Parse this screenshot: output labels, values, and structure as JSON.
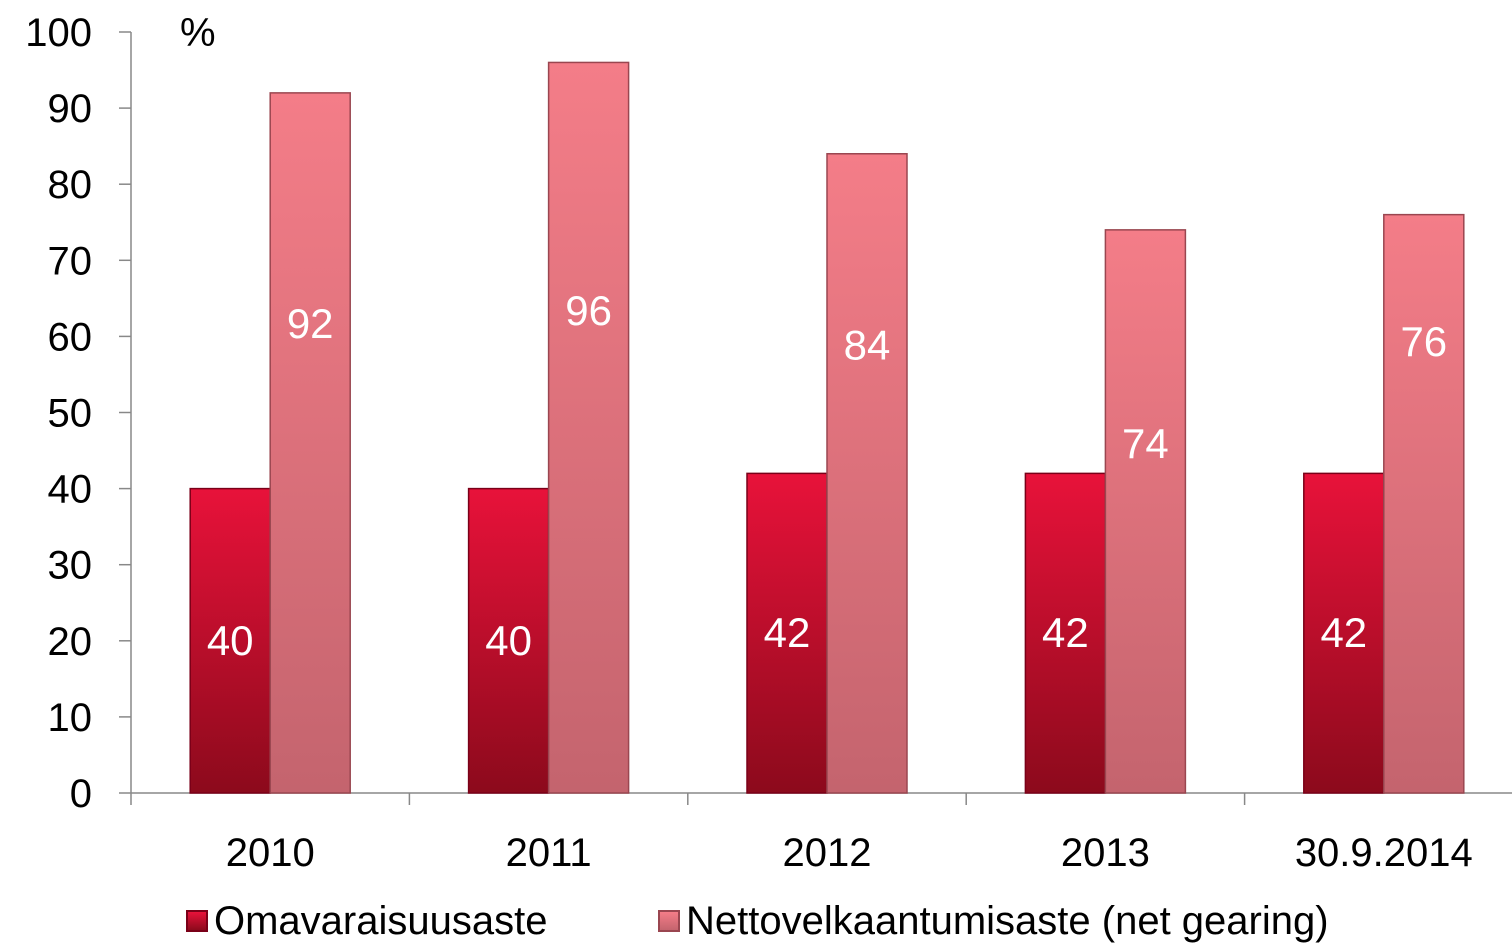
{
  "chart_data": {
    "type": "bar",
    "unit_label": "%",
    "categories": [
      "2010",
      "2011",
      "2012",
      "2013",
      "30.9.2014"
    ],
    "series": [
      {
        "name": "Omavaraisuusaste",
        "values": [
          40,
          40,
          42,
          42,
          42
        ],
        "color": "#d80f30"
      },
      {
        "name": "Nettovelkaantumisaste (net gearing)",
        "values": [
          92,
          96,
          84,
          74,
          76
        ],
        "color": "#ec7480"
      }
    ],
    "ylim": [
      0,
      100
    ],
    "yticks": [
      0,
      10,
      20,
      30,
      40,
      50,
      60,
      70,
      80,
      90,
      100
    ],
    "data_labels": true,
    "grid": false,
    "legend_position": "bottom"
  }
}
